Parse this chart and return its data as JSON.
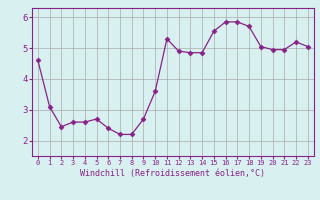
{
  "x": [
    0,
    1,
    2,
    3,
    4,
    5,
    6,
    7,
    8,
    9,
    10,
    11,
    12,
    13,
    14,
    15,
    16,
    17,
    18,
    19,
    20,
    21,
    22,
    23
  ],
  "y": [
    4.6,
    3.1,
    2.45,
    2.6,
    2.6,
    2.7,
    2.4,
    2.2,
    2.2,
    2.7,
    3.6,
    5.3,
    4.9,
    4.85,
    4.85,
    5.55,
    5.85,
    5.85,
    5.7,
    5.05,
    4.95,
    4.95,
    5.2,
    5.05
  ],
  "line_color": "#882288",
  "marker": "D",
  "marker_size": 2.5,
  "bg_color": "#d8f0f0",
  "grid_color": "#aaaaaa",
  "xlabel": "Windchill (Refroidissement éolien,°C)",
  "xlim": [
    -0.5,
    23.5
  ],
  "ylim": [
    1.5,
    6.3
  ],
  "yticks": [
    2,
    3,
    4,
    5,
    6
  ],
  "xticks": [
    0,
    1,
    2,
    3,
    4,
    5,
    6,
    7,
    8,
    9,
    10,
    11,
    12,
    13,
    14,
    15,
    16,
    17,
    18,
    19,
    20,
    21,
    22,
    23
  ],
  "xtick_labels": [
    "0",
    "1",
    "2",
    "3",
    "4",
    "5",
    "6",
    "7",
    "8",
    "9",
    "10",
    "11",
    "12",
    "13",
    "14",
    "15",
    "16",
    "17",
    "18",
    "19",
    "20",
    "21",
    "22",
    "23"
  ],
  "label_color": "#882288",
  "tick_color": "#882288",
  "font_family": "monospace",
  "xlabel_fontsize": 6.0,
  "xtick_fontsize": 5.0,
  "ytick_fontsize": 6.5
}
